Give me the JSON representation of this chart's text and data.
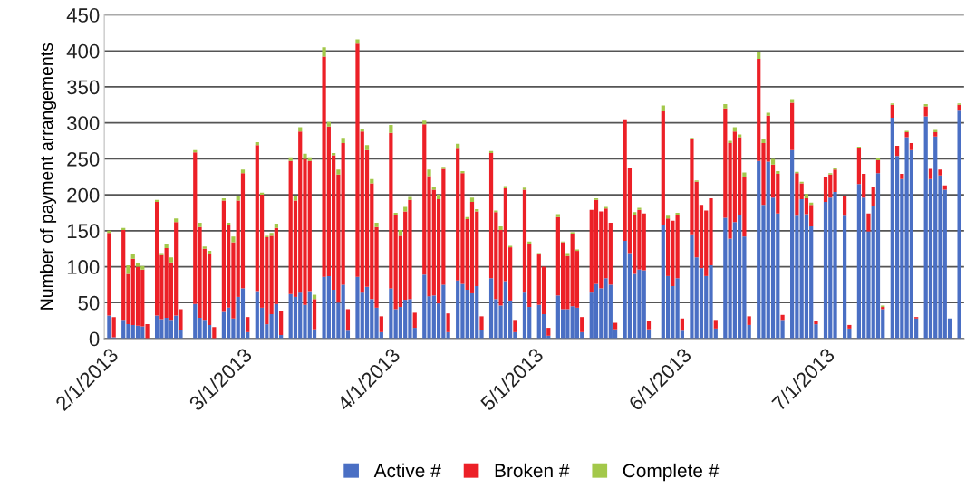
{
  "chart_data": {
    "type": "bar",
    "stacked": true,
    "ylabel": "Number of payment arrangements",
    "x": [
      "2013-02-01",
      "2013-02-02",
      "2013-02-04",
      "2013-02-05",
      "2013-02-06",
      "2013-02-07",
      "2013-02-08",
      "2013-02-09",
      "2013-02-11",
      "2013-02-12",
      "2013-02-13",
      "2013-02-14",
      "2013-02-15",
      "2013-02-16",
      "2013-02-19",
      "2013-02-20",
      "2013-02-21",
      "2013-02-22",
      "2013-02-23",
      "2013-02-25",
      "2013-02-26",
      "2013-02-27",
      "2013-02-28",
      "2013-03-01",
      "2013-03-02",
      "2013-03-04",
      "2013-03-05",
      "2013-03-06",
      "2013-03-07",
      "2013-03-08",
      "2013-03-09",
      "2013-03-11",
      "2013-03-12",
      "2013-03-13",
      "2013-03-14",
      "2013-03-15",
      "2013-03-16",
      "2013-03-18",
      "2013-03-19",
      "2013-03-20",
      "2013-03-21",
      "2013-03-22",
      "2013-03-23",
      "2013-03-25",
      "2013-03-26",
      "2013-03-27",
      "2013-03-28",
      "2013-03-29",
      "2013-03-30",
      "2013-04-01",
      "2013-04-02",
      "2013-04-03",
      "2013-04-04",
      "2013-04-05",
      "2013-04-06",
      "2013-04-08",
      "2013-04-09",
      "2013-04-10",
      "2013-04-11",
      "2013-04-12",
      "2013-04-13",
      "2013-04-15",
      "2013-04-16",
      "2013-04-17",
      "2013-04-18",
      "2013-04-19",
      "2013-04-20",
      "2013-04-22",
      "2013-04-23",
      "2013-04-24",
      "2013-04-25",
      "2013-04-26",
      "2013-04-27",
      "2013-04-29",
      "2013-04-30",
      "2013-05-02",
      "2013-05-03",
      "2013-05-04",
      "2013-05-06",
      "2013-05-07",
      "2013-05-08",
      "2013-05-09",
      "2013-05-10",
      "2013-05-11",
      "2013-05-13",
      "2013-05-14",
      "2013-05-15",
      "2013-05-16",
      "2013-05-17",
      "2013-05-18",
      "2013-05-20",
      "2013-05-21",
      "2013-05-22",
      "2013-05-23",
      "2013-05-24",
      "2013-05-25",
      "2013-05-28",
      "2013-05-29",
      "2013-05-30",
      "2013-05-31",
      "2013-06-01",
      "2013-06-03",
      "2013-06-04",
      "2013-06-05",
      "2013-06-06",
      "2013-06-07",
      "2013-06-08",
      "2013-06-10",
      "2013-06-11",
      "2013-06-12",
      "2013-06-13",
      "2013-06-14",
      "2013-06-15",
      "2013-06-17",
      "2013-06-18",
      "2013-06-19",
      "2013-06-20",
      "2013-06-21",
      "2013-06-22",
      "2013-06-24",
      "2013-06-25",
      "2013-06-26",
      "2013-06-27",
      "2013-06-28",
      "2013-06-29",
      "2013-07-01",
      "2013-07-02",
      "2013-07-03",
      "2013-07-05",
      "2013-07-06",
      "2013-07-08",
      "2013-07-09",
      "2013-07-10",
      "2013-07-11",
      "2013-07-12",
      "2013-07-13",
      "2013-07-15",
      "2013-07-16",
      "2013-07-17",
      "2013-07-18",
      "2013-07-19",
      "2013-07-20",
      "2013-07-22",
      "2013-07-23",
      "2013-07-24",
      "2013-07-25",
      "2013-07-26",
      "2013-07-27",
      "2013-07-29"
    ],
    "series": [
      {
        "name": "Active #",
        "color": "#4a6fc4",
        "values": [
          32,
          2,
          26,
          20,
          19,
          18,
          17,
          null,
          32,
          27,
          29,
          26,
          32,
          12,
          48,
          29,
          26,
          19,
          null,
          37,
          43,
          28,
          58,
          70,
          9,
          66,
          43,
          20,
          34,
          48,
          5,
          62,
          58,
          64,
          47,
          66,
          13,
          86,
          87,
          68,
          50,
          75,
          11,
          86,
          64,
          72,
          55,
          43,
          9,
          70,
          41,
          44,
          54,
          55,
          15,
          89,
          59,
          60,
          49,
          75,
          9,
          81,
          76,
          68,
          63,
          73,
          12,
          84,
          55,
          46,
          80,
          53,
          9,
          64,
          44,
          47,
          34,
          4,
          60,
          41,
          41,
          45,
          43,
          9,
          64,
          76,
          70,
          84,
          75,
          13,
          136,
          119,
          90,
          96,
          95,
          13,
          158,
          87,
          73,
          84,
          11,
          145,
          113,
          98,
          87,
          102,
          14,
          168,
          139,
          162,
          172,
          142,
          19,
          247,
          186,
          246,
          196,
          174,
          26,
          262,
          171,
          194,
          173,
          156,
          20,
          190,
          196,
          204,
          171,
          14,
          215,
          196,
          149,
          184,
          230,
          41,
          307,
          254,
          222,
          280,
          262,
          28,
          309,
          222,
          281,
          227,
          207,
          28,
          317
        ]
      },
      {
        "name": "Broken #",
        "color": "#ec2027",
        "values": [
          115,
          28,
          125,
          70,
          92,
          82,
          79,
          20,
          158,
          89,
          97,
          80,
          130,
          29,
          211,
          126,
          99,
          98,
          16,
          155,
          115,
          106,
          134,
          160,
          21,
          203,
          157,
          121,
          109,
          106,
          33,
          185,
          134,
          224,
          203,
          181,
          42,
          306,
          208,
          187,
          178,
          197,
          30,
          324,
          224,
          190,
          161,
          112,
          22,
          216,
          131,
          99,
          123,
          138,
          21,
          209,
          167,
          147,
          145,
          161,
          26,
          183,
          154,
          98,
          127,
          104,
          19,
          174,
          121,
          105,
          129,
          74,
          17,
          143,
          88,
          70,
          66,
          11,
          109,
          93,
          74,
          101,
          79,
          21,
          115,
          117,
          107,
          97,
          86,
          9,
          169,
          118,
          82,
          83,
          79,
          12,
          158,
          80,
          91,
          88,
          17,
          132,
          105,
          88,
          91,
          93,
          12,
          152,
          133,
          126,
          108,
          82,
          12,
          142,
          86,
          64,
          46,
          55,
          7,
          66,
          59,
          22,
          22,
          30,
          5,
          34,
          32,
          31,
          28,
          5,
          50,
          33,
          25,
          27,
          18,
          3,
          18,
          14,
          7,
          7,
          10,
          2,
          14,
          14,
          6,
          8,
          6,
          0,
          8
        ]
      },
      {
        "name": "Complete #",
        "color": "#a3c84a",
        "values": [
          3,
          0,
          3,
          12,
          6,
          5,
          5,
          0,
          3,
          3,
          5,
          7,
          5,
          0,
          3,
          6,
          3,
          5,
          0,
          3,
          3,
          8,
          6,
          5,
          0,
          4,
          3,
          2,
          4,
          6,
          0,
          5,
          6,
          6,
          7,
          5,
          6,
          13,
          6,
          3,
          7,
          7,
          0,
          6,
          4,
          7,
          6,
          6,
          0,
          11,
          3,
          8,
          6,
          4,
          0,
          5,
          9,
          4,
          6,
          3,
          0,
          7,
          3,
          3,
          6,
          3,
          0,
          3,
          2,
          5,
          3,
          2,
          0,
          3,
          3,
          2,
          0,
          0,
          4,
          1,
          4,
          2,
          2,
          0,
          0,
          2,
          0,
          2,
          0,
          0,
          0,
          0,
          4,
          3,
          0,
          0,
          8,
          4,
          0,
          3,
          0,
          2,
          2,
          0,
          0,
          0,
          0,
          6,
          3,
          6,
          4,
          7,
          0,
          10,
          5,
          4,
          8,
          4,
          0,
          5,
          2,
          2,
          6,
          3,
          0,
          1,
          2,
          3,
          0,
          0,
          2,
          0,
          0,
          0,
          3,
          2,
          2,
          0,
          0,
          2,
          0,
          0,
          3,
          0,
          3,
          0,
          0,
          0,
          2
        ]
      }
    ],
    "xlim": [
      "2013-01-31",
      "2013-07-30"
    ],
    "xticks": [
      {
        "value": "2013-02-01",
        "label": "2/1/2013"
      },
      {
        "value": "2013-03-01",
        "label": "3/1/2013"
      },
      {
        "value": "2013-04-01",
        "label": "4/1/2013"
      },
      {
        "value": "2013-05-01",
        "label": "5/1/2013"
      },
      {
        "value": "2013-06-01",
        "label": "6/1/2013"
      },
      {
        "value": "2013-07-01",
        "label": "7/1/2013"
      }
    ],
    "ylim": [
      0,
      450
    ],
    "yticks": [
      0,
      50,
      100,
      150,
      200,
      250,
      300,
      350,
      400,
      450
    ],
    "grid": "y",
    "legend": "bottom"
  }
}
